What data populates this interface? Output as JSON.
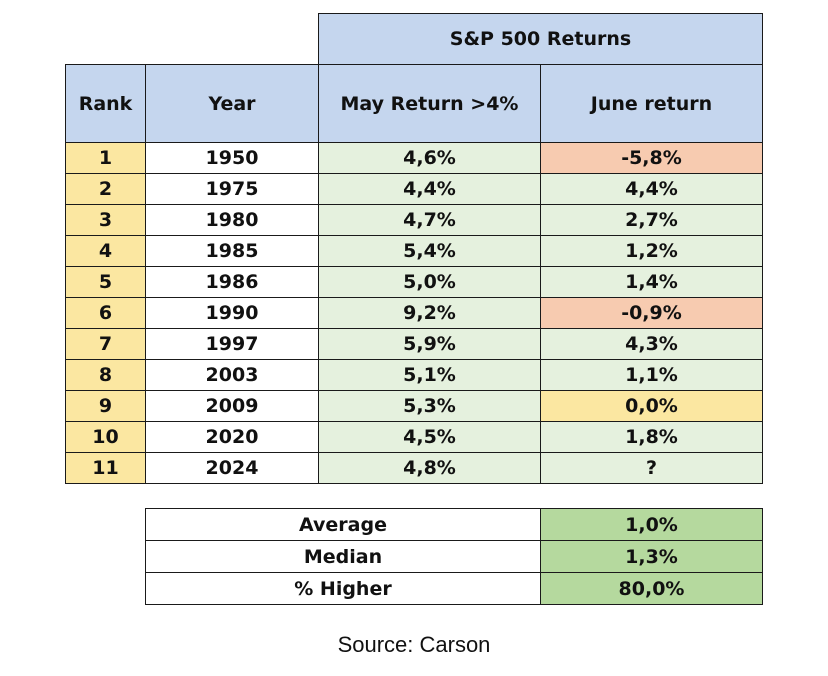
{
  "chart_data": {
    "type": "table",
    "title": "S&P 500 Returns",
    "columns": [
      "Rank",
      "Year",
      "May Return >4%",
      "June return"
    ],
    "rows": [
      {
        "rank": "1",
        "year": "1950",
        "may": "4,6%",
        "june": "-5,8%",
        "june_class": "neg"
      },
      {
        "rank": "2",
        "year": "1975",
        "may": "4,4%",
        "june": "4,4%",
        "june_class": ""
      },
      {
        "rank": "3",
        "year": "1980",
        "may": "4,7%",
        "june": "2,7%",
        "june_class": ""
      },
      {
        "rank": "4",
        "year": "1985",
        "may": "5,4%",
        "june": "1,2%",
        "june_class": ""
      },
      {
        "rank": "5",
        "year": "1986",
        "may": "5,0%",
        "june": "1,4%",
        "june_class": ""
      },
      {
        "rank": "6",
        "year": "1990",
        "may": "9,2%",
        "june": "-0,9%",
        "june_class": "neg"
      },
      {
        "rank": "7",
        "year": "1997",
        "may": "5,9%",
        "june": "4,3%",
        "june_class": ""
      },
      {
        "rank": "8",
        "year": "2003",
        "may": "5,1%",
        "june": "1,1%",
        "june_class": ""
      },
      {
        "rank": "9",
        "year": "2009",
        "may": "5,3%",
        "june": "0,0%",
        "june_class": "zero"
      },
      {
        "rank": "10",
        "year": "2020",
        "may": "4,5%",
        "june": "1,8%",
        "june_class": ""
      },
      {
        "rank": "11",
        "year": "2024",
        "may": "4,8%",
        "june": "?",
        "june_class": ""
      }
    ],
    "summary": [
      {
        "label": "Average",
        "value": "1,0%"
      },
      {
        "label": "Median",
        "value": "1,3%"
      },
      {
        "label": "% Higher",
        "value": "80,0%"
      }
    ],
    "colors": {
      "header": "#c5d6ee",
      "rank": "#fbe7a1",
      "positive": "#e5f1de",
      "negative": "#f7cbb0",
      "zero": "#fbe7a1",
      "summary_value": "#b5d99e"
    }
  },
  "source": "Source: Carson"
}
